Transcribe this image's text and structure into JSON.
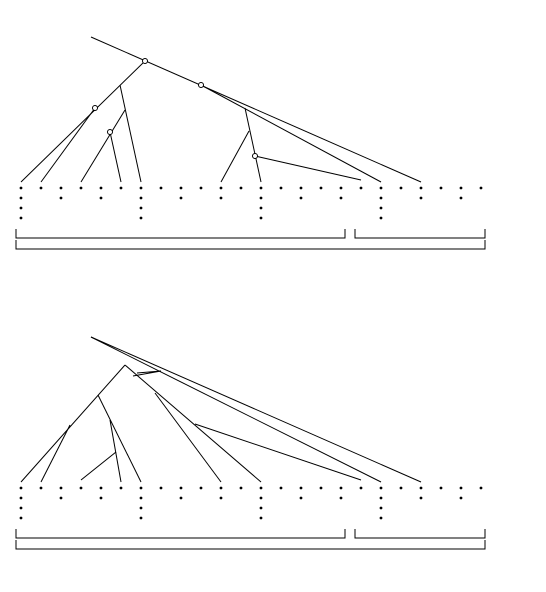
{
  "figure": {
    "panels": [
      {
        "id": "top",
        "description_visible": false,
        "columns": [
          {
            "x": 21,
            "depth": 4
          },
          {
            "x": 41,
            "depth": 1
          },
          {
            "x": 61,
            "depth": 2
          },
          {
            "x": 81,
            "depth": 1
          },
          {
            "x": 101,
            "depth": 2
          },
          {
            "x": 121,
            "depth": 1
          },
          {
            "x": 141,
            "depth": 4
          },
          {
            "x": 161,
            "depth": 1
          },
          {
            "x": 181,
            "depth": 2
          },
          {
            "x": 201,
            "depth": 1
          },
          {
            "x": 221,
            "depth": 2
          },
          {
            "x": 241,
            "depth": 1
          },
          {
            "x": 261,
            "depth": 4
          },
          {
            "x": 281,
            "depth": 1
          },
          {
            "x": 301,
            "depth": 2
          },
          {
            "x": 321,
            "depth": 1
          },
          {
            "x": 341,
            "depth": 2
          },
          {
            "x": 361,
            "depth": 1
          },
          {
            "x": 381,
            "depth": 4
          },
          {
            "x": 401,
            "depth": 1
          },
          {
            "x": 421,
            "depth": 2
          },
          {
            "x": 441,
            "depth": 1
          },
          {
            "x": 461,
            "depth": 2
          },
          {
            "x": 481,
            "depth": 1
          }
        ]
      },
      {
        "id": "bottom",
        "description_visible": false
      }
    ]
  }
}
